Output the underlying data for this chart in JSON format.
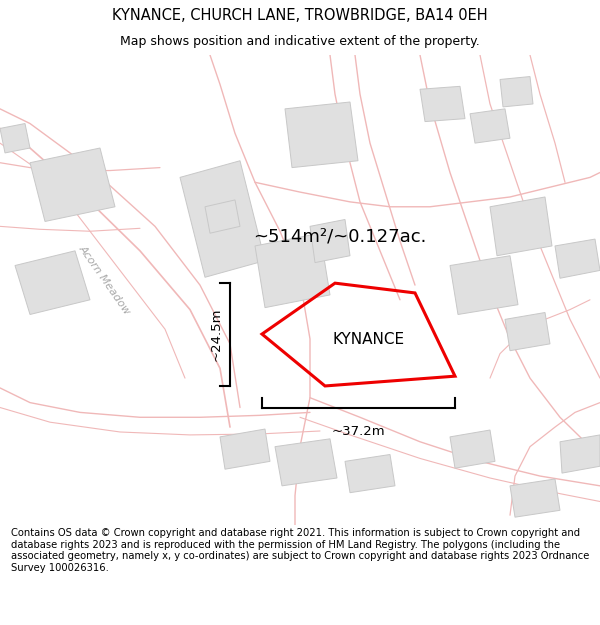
{
  "title": "KYNANCE, CHURCH LANE, TROWBRIDGE, BA14 0EH",
  "subtitle": "Map shows position and indicative extent of the property.",
  "footer": "Contains OS data © Crown copyright and database right 2021. This information is subject to Crown copyright and database rights 2023 and is reproduced with the permission of HM Land Registry. The polygons (including the associated geometry, namely x, y co-ordinates) are subject to Crown copyright and database rights 2023 Ordnance Survey 100026316.",
  "bg_color": "#ffffff",
  "map_bg": "#ffffff",
  "property_label": "KYNANCE",
  "area_label": "~514m²/~0.127ac.",
  "width_label": "~37.2m",
  "height_label": "~24.5m",
  "road_label": "Acorn Meadow",
  "red_color": "#ee0000",
  "road_line_color": "#f0b8b8",
  "building_fill": "#e0e0e0",
  "building_edge": "#c8c8c8",
  "figsize": [
    6.0,
    6.25
  ],
  "dpi": 100,
  "road_lw": 1.0,
  "road_bg_lw": 0.0
}
